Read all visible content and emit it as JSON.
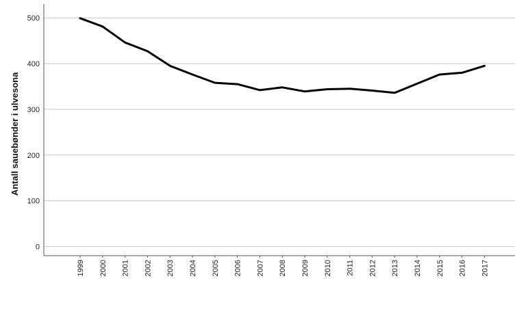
{
  "chart_data": {
    "type": "line",
    "title": "",
    "xlabel": "",
    "ylabel": "Antall sauebønder i ulvesona",
    "x": [
      "1999",
      "2000",
      "2001",
      "2002",
      "2003",
      "2004",
      "2005",
      "2006",
      "2007",
      "2008",
      "2009",
      "2010",
      "2011",
      "2012",
      "2013",
      "2014",
      "2015",
      "2016",
      "2017"
    ],
    "series": [
      {
        "values": [
          499,
          481,
          446,
          427,
          395,
          376,
          358,
          355,
          342,
          348,
          339,
          344,
          345,
          341,
          336,
          356,
          376,
          380,
          395
        ]
      }
    ],
    "yticks": [
      "0",
      "100",
      "200",
      "300",
      "400",
      "500"
    ],
    "ylim": [
      -20,
      530
    ],
    "grid": true,
    "legend": "none",
    "colors": {
      "line": "#000000",
      "grid": "#c8c8c8",
      "axis": "#555555"
    }
  }
}
